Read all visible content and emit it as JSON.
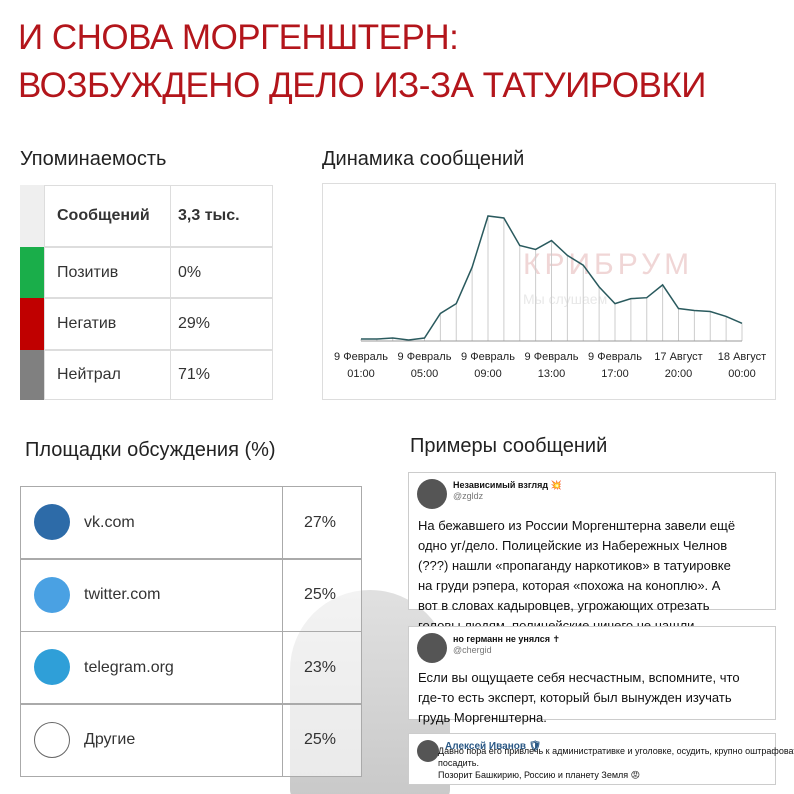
{
  "header": {
    "title": [
      "И СНОВА МОРГЕНШТЕРН:",
      "ВОЗБУЖДЕНО ДЕЛО ИЗ-ЗА ТАТУИРОВКИ"
    ]
  },
  "mentions": {
    "title": "Упоминаемость",
    "rows": [
      [
        "Сообщений",
        "3,3 тыс."
      ],
      [
        "Позитив",
        "0%"
      ],
      [
        "Негатив",
        "29%"
      ],
      [
        "Нейтрал",
        "71%"
      ]
    ],
    "colors": [
      "#efefef",
      "#1aae4a",
      "#c00000",
      "#808080"
    ]
  },
  "dynamics": {
    "title": "Динамика сообщений",
    "watermark": [
      "КРИБРУМ",
      "Мы слушаем"
    ],
    "chart": {
      "type": "line",
      "color": "#2a5a5e",
      "categories": [
        [
          "9 Февраль",
          "01:00"
        ],
        null,
        null,
        null,
        [
          "9 Февраль",
          "05:00"
        ],
        null,
        null,
        null,
        [
          "9 Февраль",
          "09:00"
        ],
        null,
        null,
        null,
        [
          "9 Февраль",
          "13:00"
        ],
        null,
        null,
        null,
        [
          "9 Февраль",
          "17:00"
        ],
        null,
        null,
        null,
        [
          "17 Август",
          "20:00"
        ],
        null,
        null,
        null,
        [
          "18 Август",
          "00:00"
        ]
      ],
      "values": [
        2,
        2,
        3,
        1,
        3,
        28,
        38,
        75,
        127,
        125,
        97,
        93,
        102,
        87,
        77,
        55,
        38,
        43,
        44,
        57,
        33,
        31,
        30,
        25,
        18
      ]
    }
  },
  "platforms": {
    "title": "Площадки обсуждения (%)",
    "rows": [
      [
        "vk.com",
        "27%"
      ],
      [
        "twitter.com",
        "25%"
      ],
      [
        "telegram.org",
        "23%"
      ],
      [
        "Другие",
        "25%"
      ]
    ]
  },
  "messages": {
    "title": "Примеры сообщений",
    "items": [
      {
        "name": "Независимый взгляд 💥",
        "handle": "@zgldz",
        "text": [
          "На бежавшего из России Моргенштерна завели ещё",
          "одно уг/дело. Полицейские из Набережных Челнов",
          "(???) нашли «пропаганду наркотиков» в татуировке",
          "на груди рэпера, которая «похожа на коноплю». А",
          "вот в словах кадыровцев, угрожающих отрезать",
          "головы людям, полицейские ничего не нашли"
        ]
      },
      {
        "name": "но германн не унялся ✝",
        "handle": "@chergid",
        "text": [
          "Если вы ощущаете себя несчастным, вспомните, что",
          "где-то есть эксперт, который был вынужден изучать",
          "грудь Моргенштерна."
        ]
      },
      {
        "name": "Алексей Иванов 🛡",
        "text": [
          "Давно пора его привлечь к административке и уголовке, осудить, крупно оштрафовать,",
          "посадить.",
          "Позорит Башкирию, Россию и планету Земля 😡"
        ]
      }
    ]
  }
}
